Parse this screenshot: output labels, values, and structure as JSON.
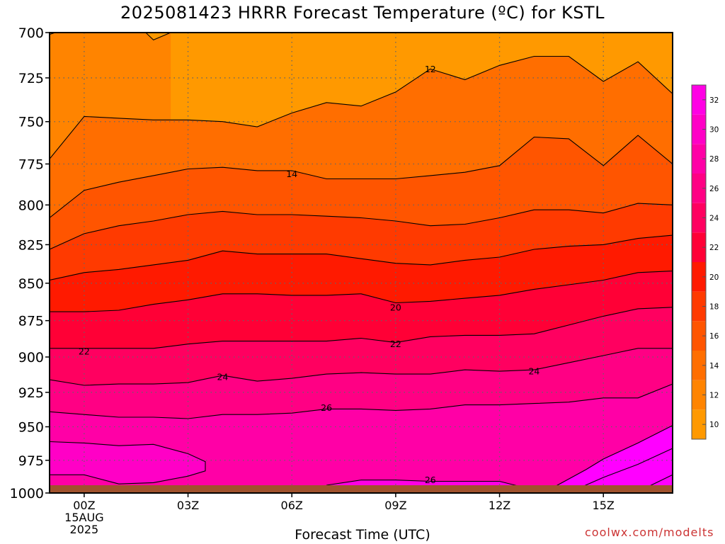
{
  "title": "2025081423 HRRR Forecast Temperature (ºC) for KSTL",
  "watermark": "coolwx.com/modelts",
  "colors": {
    "fill_bands": [
      "#ff9900",
      "#ff8400",
      "#ff6e00",
      "#ff5500",
      "#ff3a00",
      "#ff1a00",
      "#ff0036",
      "#ff0060",
      "#ff0084",
      "#ff00a6",
      "#ff00c6",
      "#ff00e4",
      "#ff00ff"
    ],
    "ground": "#a0522d",
    "contour": "#000000",
    "grid": "#666666",
    "watermark": "#cc3333"
  },
  "chart_data": {
    "type": "heatmap",
    "title": "2025081423 HRRR Forecast Temperature (ºC) for KSTL",
    "xlabel": "Forecast Time (UTC)",
    "ylabel": "",
    "x_ticks": [
      {
        "hour": 0,
        "label": "00Z",
        "sub": [
          "15AUG",
          "2025"
        ]
      },
      {
        "hour": 3,
        "label": "03Z",
        "sub": []
      },
      {
        "hour": 6,
        "label": "06Z",
        "sub": []
      },
      {
        "hour": 9,
        "label": "09Z",
        "sub": []
      },
      {
        "hour": 12,
        "label": "12Z",
        "sub": []
      },
      {
        "hour": 15,
        "label": "15Z",
        "sub": []
      }
    ],
    "xlim": [
      -1,
      17
    ],
    "y_ticks": [
      700,
      725,
      750,
      775,
      800,
      825,
      850,
      875,
      900,
      925,
      950,
      975,
      1000
    ],
    "ylim_hpa": [
      700,
      1000
    ],
    "surface_pressure_hpa": 994,
    "grid": true,
    "colorbar_ticks": [
      10,
      12,
      14,
      16,
      18,
      20,
      22,
      24,
      26,
      28,
      30,
      32
    ],
    "colorbar_range": [
      9,
      33
    ],
    "contour_labels": [
      {
        "text": "12",
        "hour": 10,
        "hpa": 720
      },
      {
        "text": "14",
        "hour": 6,
        "hpa": 781
      },
      {
        "text": "20",
        "hour": 9,
        "hpa": 866
      },
      {
        "text": "22",
        "hour": 0,
        "hpa": 896
      },
      {
        "text": "22",
        "hour": 9,
        "hpa": 891
      },
      {
        "text": "24",
        "hour": 4,
        "hpa": 914
      },
      {
        "text": "24",
        "hour": 13,
        "hpa": 910
      },
      {
        "text": "26",
        "hour": 7,
        "hpa": 936
      },
      {
        "text": "26",
        "hour": 10,
        "hpa": 990
      }
    ],
    "contours": [
      {
        "level": 12,
        "points": [
          [
            -1,
            701
          ],
          [
            0,
            695
          ],
          [
            1,
            697
          ],
          [
            1.5,
            695
          ],
          [
            2,
            704
          ],
          [
            2.5,
            700
          ]
        ]
      },
      {
        "level": 12,
        "points": [
          [
            -1,
            772
          ],
          [
            0,
            747
          ],
          [
            1,
            748
          ],
          [
            2,
            749
          ],
          [
            3,
            749
          ],
          [
            4,
            750
          ],
          [
            5,
            753
          ],
          [
            6,
            745
          ],
          [
            7,
            739
          ],
          [
            8,
            741
          ],
          [
            9,
            733
          ],
          [
            10,
            720
          ],
          [
            11,
            726
          ],
          [
            12,
            718
          ],
          [
            13,
            713
          ],
          [
            14,
            713
          ],
          [
            15,
            727
          ],
          [
            16,
            716
          ],
          [
            17,
            734
          ]
        ]
      },
      {
        "level": 13,
        "points": [
          [
            -1,
            808
          ],
          [
            0,
            791
          ],
          [
            1,
            786
          ],
          [
            2,
            782
          ],
          [
            3,
            778
          ],
          [
            4,
            777
          ],
          [
            5,
            779
          ],
          [
            6,
            779
          ],
          [
            7,
            784
          ],
          [
            8,
            784
          ],
          [
            9,
            784
          ],
          [
            10,
            782
          ],
          [
            11,
            780
          ],
          [
            12,
            776
          ],
          [
            13,
            759
          ],
          [
            14,
            760
          ],
          [
            15,
            776
          ],
          [
            16,
            758
          ],
          [
            17,
            775
          ]
        ]
      },
      {
        "level": 14,
        "points": [
          [
            -1,
            828
          ],
          [
            0,
            818
          ],
          [
            1,
            813
          ],
          [
            2,
            810
          ],
          [
            3,
            806
          ],
          [
            4,
            804
          ],
          [
            5,
            806
          ],
          [
            6,
            806
          ],
          [
            7,
            807
          ],
          [
            8,
            808
          ],
          [
            9,
            810
          ],
          [
            10,
            813
          ],
          [
            11,
            812
          ],
          [
            12,
            808
          ],
          [
            13,
            803
          ],
          [
            14,
            803
          ],
          [
            15,
            805
          ],
          [
            16,
            799
          ],
          [
            17,
            800
          ]
        ]
      },
      {
        "level": 15,
        "points": [
          [
            -1,
            848
          ],
          [
            0,
            843
          ],
          [
            1,
            841
          ],
          [
            2,
            838
          ],
          [
            3,
            835
          ],
          [
            4,
            829
          ],
          [
            5,
            831
          ],
          [
            6,
            831
          ],
          [
            7,
            831
          ],
          [
            8,
            834
          ],
          [
            9,
            837
          ],
          [
            10,
            838
          ],
          [
            11,
            835
          ],
          [
            12,
            833
          ],
          [
            13,
            828
          ],
          [
            14,
            826
          ],
          [
            15,
            825
          ],
          [
            16,
            821
          ],
          [
            17,
            819
          ]
        ]
      },
      {
        "level": 16,
        "points": [
          [
            -1,
            869
          ],
          [
            0,
            869
          ],
          [
            1,
            868
          ],
          [
            2,
            864
          ],
          [
            3,
            861
          ],
          [
            4,
            857
          ],
          [
            5,
            857
          ],
          [
            6,
            858
          ],
          [
            7,
            858
          ],
          [
            8,
            857
          ],
          [
            9,
            863
          ],
          [
            10,
            862
          ],
          [
            11,
            860
          ],
          [
            12,
            858
          ],
          [
            13,
            854
          ],
          [
            14,
            851
          ],
          [
            15,
            848
          ],
          [
            16,
            843
          ],
          [
            17,
            842
          ]
        ]
      },
      {
        "level": 17,
        "points": [
          [
            -1,
            894
          ],
          [
            0,
            894
          ],
          [
            1,
            894
          ],
          [
            2,
            894
          ],
          [
            3,
            891
          ],
          [
            4,
            889
          ],
          [
            5,
            889
          ],
          [
            6,
            889
          ],
          [
            7,
            889
          ],
          [
            8,
            887
          ],
          [
            9,
            890
          ],
          [
            10,
            886
          ],
          [
            11,
            885
          ],
          [
            12,
            885
          ],
          [
            13,
            884
          ],
          [
            14,
            878
          ],
          [
            15,
            872
          ],
          [
            16,
            867
          ],
          [
            17,
            866
          ]
        ]
      },
      {
        "level": 18,
        "points": [
          [
            -1,
            916
          ],
          [
            0,
            920
          ],
          [
            1,
            919
          ],
          [
            2,
            919
          ],
          [
            3,
            918
          ],
          [
            4,
            913
          ],
          [
            5,
            917
          ],
          [
            6,
            915
          ],
          [
            7,
            912
          ],
          [
            8,
            911
          ],
          [
            9,
            912
          ],
          [
            10,
            912
          ],
          [
            11,
            909
          ],
          [
            12,
            910
          ],
          [
            13,
            909
          ],
          [
            14,
            904
          ],
          [
            15,
            899
          ],
          [
            16,
            894
          ],
          [
            17,
            894
          ]
        ]
      },
      {
        "level": 19,
        "points": [
          [
            -1,
            939
          ],
          [
            0,
            941
          ],
          [
            1,
            943
          ],
          [
            2,
            943
          ],
          [
            3,
            944
          ],
          [
            4,
            941
          ],
          [
            5,
            941
          ],
          [
            6,
            940
          ],
          [
            7,
            937
          ],
          [
            8,
            937
          ],
          [
            9,
            938
          ],
          [
            10,
            937
          ],
          [
            11,
            934
          ],
          [
            12,
            934
          ],
          [
            13,
            933
          ],
          [
            14,
            932
          ],
          [
            15,
            929
          ],
          [
            16,
            929
          ],
          [
            17,
            919
          ]
        ]
      },
      {
        "level": 20,
        "points": [
          [
            -1,
            961
          ],
          [
            0,
            962
          ],
          [
            1,
            964
          ],
          [
            2,
            963
          ],
          [
            3,
            970
          ],
          [
            3.5,
            976
          ],
          [
            3.5,
            983
          ],
          [
            3,
            987
          ],
          [
            2,
            992
          ],
          [
            1,
            993
          ],
          [
            0,
            986
          ],
          [
            -1,
            986
          ]
        ]
      },
      {
        "level": 21,
        "points": [
          [
            7,
            994
          ],
          [
            8,
            990
          ],
          [
            9,
            990
          ],
          [
            10,
            991
          ],
          [
            11,
            991
          ],
          [
            12,
            991
          ],
          [
            12.6,
            995
          ]
        ]
      },
      {
        "level": 22,
        "points": [
          [
            13.6,
            995
          ],
          [
            14.5,
            982
          ],
          [
            15,
            974
          ],
          [
            16,
            962
          ],
          [
            17,
            949
          ]
        ]
      },
      {
        "level": 23,
        "points": [
          [
            14.4,
            995
          ],
          [
            15,
            988
          ],
          [
            16,
            978
          ],
          [
            17,
            966
          ]
        ]
      },
      {
        "level": 24,
        "points": [
          [
            16.3,
            995
          ],
          [
            17,
            986
          ]
        ]
      }
    ]
  }
}
